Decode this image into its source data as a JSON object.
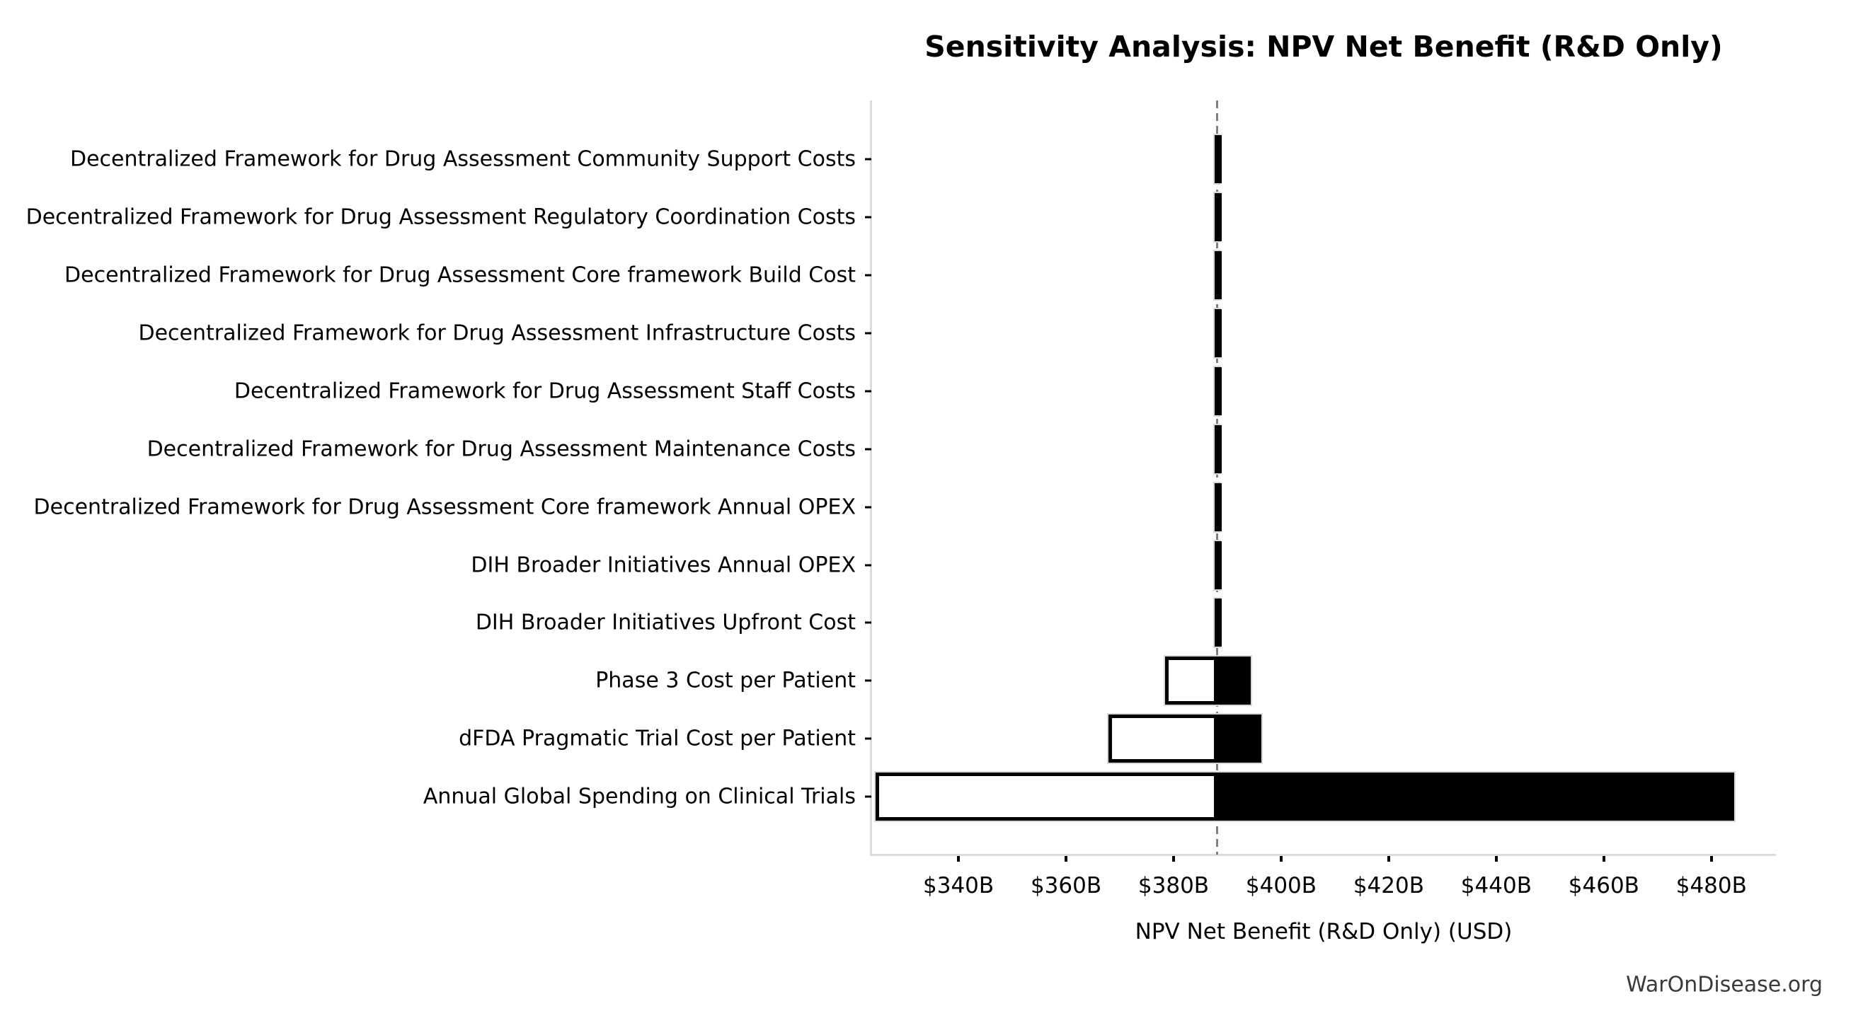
{
  "header": {
    "title": "Sensitivity Analysis: NPV Net Benefit (R&D Only)"
  },
  "footer": {
    "watermark": "WarOnDisease.org"
  },
  "chart_data": {
    "type": "bar",
    "subtype": "tornado-horizontal",
    "title": "Sensitivity Analysis: NPV Net Benefit (R&D Only)",
    "xlabel": "NPV Net Benefit (R&D Only) (USD)",
    "unit": "billions of USD",
    "baseline_value": 388.1,
    "xlim": [
      323.8,
      492.0
    ],
    "grid": "off",
    "legend": "none",
    "x_ticks": [
      {
        "value": 340,
        "label": "$340B"
      },
      {
        "value": 360,
        "label": "$360B"
      },
      {
        "value": 380,
        "label": "$380B"
      },
      {
        "value": 400,
        "label": "$400B"
      },
      {
        "value": 420,
        "label": "$420B"
      },
      {
        "value": 440,
        "label": "$440B"
      },
      {
        "value": 460,
        "label": "$460B"
      },
      {
        "value": 480,
        "label": "$480B"
      }
    ],
    "categories": [
      {
        "label": "Decentralized Framework for Drug Assessment Community Support Costs",
        "low": 387.6,
        "high": 388.6
      },
      {
        "label": "Decentralized Framework for Drug Assessment Regulatory Coordination Costs",
        "low": 387.6,
        "high": 388.6
      },
      {
        "label": "Decentralized Framework for Drug Assessment Core framework Build Cost",
        "low": 387.6,
        "high": 388.6
      },
      {
        "label": "Decentralized Framework for Drug Assessment Infrastructure Costs",
        "low": 387.6,
        "high": 388.6
      },
      {
        "label": "Decentralized Framework for Drug Assessment Staff Costs",
        "low": 387.6,
        "high": 388.6
      },
      {
        "label": "Decentralized Framework for Drug Assessment Maintenance Costs",
        "low": 387.6,
        "high": 388.6
      },
      {
        "label": "Decentralized Framework for Drug Assessment Core framework Annual OPEX",
        "low": 387.6,
        "high": 388.6
      },
      {
        "label": "DIH Broader Initiatives Annual OPEX",
        "low": 387.6,
        "high": 388.6
      },
      {
        "label": "DIH Broader Initiatives Upfront Cost",
        "low": 387.6,
        "high": 388.6
      },
      {
        "label": "Phase 3 Cost per Patient",
        "low": 378.4,
        "high": 394.3
      },
      {
        "label": "dFDA Pragmatic Trial Cost per Patient",
        "low": 367.9,
        "high": 396.3
      },
      {
        "label": "Annual Global Spending on Clinical Trials",
        "low": 324.6,
        "high": 484.3
      }
    ],
    "colors": {
      "low_segment_fill": "#ffffff",
      "low_segment_border": "#000000",
      "high_segment_fill": "#000000",
      "range_outline": "#d9d9d9",
      "baseline_line": "#808080",
      "spine": "#dcdcdc",
      "text": "#000000",
      "watermark_text": "#3a3a3a"
    }
  }
}
